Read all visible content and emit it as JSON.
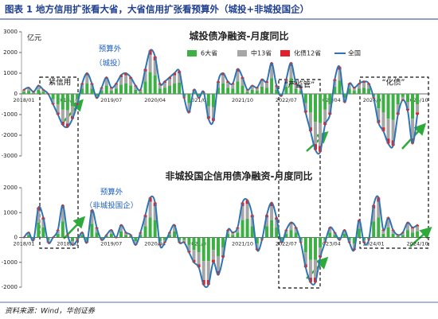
{
  "header": {
    "title": "图表 1   地方信用扩张看大省，大省信用扩张看预算外（城投+非城投国企）"
  },
  "source": "资料来源：Wind，华创证券",
  "chart_data": [
    {
      "type": "bar",
      "title": "城投债净融资-月度同比",
      "y_label": "亿元",
      "legend": "top",
      "stacked": true,
      "categories": [
        "2018/01",
        null,
        null,
        null,
        null,
        null,
        null,
        null,
        null,
        "2018/10",
        null,
        null,
        null,
        null,
        null,
        null,
        null,
        null,
        "2019/07",
        null,
        null,
        null,
        null,
        null,
        null,
        null,
        null,
        "2020/04",
        null,
        null,
        null,
        null,
        null,
        null,
        null,
        null,
        "2021/01",
        null,
        null,
        null,
        null,
        null,
        null,
        null,
        null,
        "2021/10",
        null,
        null,
        null,
        null,
        null,
        null,
        null,
        null,
        "2022/07",
        null,
        null,
        null,
        null,
        null,
        null,
        null,
        null,
        "2023/04",
        null,
        null,
        null,
        null,
        null,
        null,
        null,
        null,
        "2024/01",
        null,
        null,
        null,
        null,
        null,
        null,
        null,
        null,
        "2024/10"
      ],
      "ylim": [
        -3000,
        3000
      ],
      "yticks": [
        -3000,
        -2000,
        -1000,
        0,
        1000,
        2000,
        3000
      ],
      "annotations": [
        "紧信用",
        "预算外",
        "（城投）",
        "“严监管”",
        "“化债”"
      ],
      "series": [
        {
          "name": "6大省",
          "color": "#3cb043",
          "values": [
            100,
            150,
            50,
            200,
            100,
            0,
            -250,
            -500,
            -750,
            -800,
            -600,
            -250,
            250,
            500,
            250,
            -100,
            150,
            400,
            150,
            250,
            450,
            500,
            400,
            200,
            100,
            600,
            1050,
            900,
            250,
            300,
            400,
            500,
            550,
            -100,
            -450,
            100,
            -100,
            50,
            -600,
            -650,
            300,
            500,
            300,
            250,
            600,
            400,
            100,
            200,
            150,
            350,
            300,
            750,
            200,
            -50,
            350,
            750,
            250,
            150,
            -450,
            -900,
            -1350,
            -1400,
            -750,
            -500,
            350,
            650,
            -200,
            250,
            150,
            250,
            300,
            250,
            -100,
            -700,
            -900,
            -1200,
            -1250,
            -500,
            -150,
            -400,
            -1200,
            -500
          ]
        },
        {
          "name": "中13省",
          "color": "#a6a6a6",
          "values": [
            80,
            120,
            40,
            160,
            80,
            0,
            -200,
            -400,
            -600,
            -640,
            -480,
            -200,
            200,
            400,
            200,
            -80,
            120,
            320,
            120,
            200,
            360,
            400,
            320,
            160,
            80,
            480,
            840,
            720,
            200,
            240,
            320,
            400,
            440,
            -80,
            -360,
            80,
            -80,
            40,
            -480,
            -520,
            240,
            400,
            240,
            200,
            480,
            320,
            80,
            160,
            120,
            280,
            240,
            600,
            160,
            -40,
            280,
            600,
            200,
            120,
            -360,
            -720,
            -1080,
            -1120,
            -600,
            -400,
            280,
            520,
            -160,
            200,
            120,
            200,
            240,
            200,
            -80,
            -560,
            -720,
            -960,
            -1000,
            -400,
            -120,
            -320,
            -960,
            -400
          ]
        },
        {
          "name": "化债12省",
          "color": "#e0202a",
          "values": [
            20,
            30,
            10,
            40,
            20,
            0,
            -50,
            -100,
            -150,
            -160,
            -120,
            -50,
            50,
            100,
            50,
            -20,
            30,
            80,
            30,
            50,
            90,
            100,
            80,
            40,
            20,
            120,
            210,
            180,
            50,
            60,
            80,
            100,
            110,
            -20,
            -90,
            20,
            -20,
            10,
            -120,
            -130,
            60,
            100,
            60,
            50,
            120,
            80,
            20,
            40,
            30,
            70,
            60,
            150,
            40,
            -10,
            70,
            150,
            50,
            30,
            -90,
            -180,
            -270,
            -280,
            -150,
            -100,
            70,
            130,
            -40,
            50,
            30,
            50,
            60,
            50,
            -20,
            -140,
            -180,
            -240,
            -250,
            -100,
            -30,
            -80,
            -240,
            -100
          ]
        },
        {
          "name": "全国",
          "type": "line",
          "color": "#2e75b6",
          "values": [
            200,
            300,
            100,
            400,
            200,
            0,
            -500,
            -1000,
            -1500,
            -1600,
            -1200,
            -500,
            500,
            1000,
            500,
            -200,
            300,
            800,
            300,
            500,
            900,
            1000,
            800,
            400,
            200,
            1200,
            2100,
            1800,
            500,
            600,
            800,
            1000,
            1100,
            -200,
            -900,
            200,
            -200,
            100,
            -1200,
            -1300,
            600,
            1000,
            600,
            500,
            1200,
            800,
            200,
            400,
            300,
            700,
            600,
            1500,
            400,
            -100,
            700,
            1500,
            500,
            300,
            -900,
            -1800,
            -2700,
            -2800,
            -1500,
            -1000,
            700,
            1300,
            -400,
            500,
            300,
            500,
            600,
            500,
            -200,
            -1400,
            -1800,
            -2400,
            -2500,
            -1000,
            -300,
            -800,
            -2400,
            -1000
          ]
        }
      ]
    },
    {
      "type": "bar",
      "title": "非城投国企信用债净融资-月度同比",
      "stacked": true,
      "categories": [
        "2018/01",
        null,
        null,
        null,
        null,
        null,
        null,
        null,
        null,
        "2018/10",
        null,
        null,
        null,
        null,
        null,
        null,
        null,
        null,
        "2019/07",
        null,
        null,
        null,
        null,
        null,
        null,
        null,
        null,
        "2020/04",
        null,
        null,
        null,
        null,
        null,
        null,
        null,
        null,
        "2021/01",
        null,
        null,
        null,
        null,
        null,
        null,
        null,
        null,
        "2021/10",
        null,
        null,
        null,
        null,
        null,
        null,
        null,
        null,
        "2022/07",
        null,
        null,
        null,
        null,
        null,
        null,
        null,
        null,
        "2023/04",
        null,
        null,
        null,
        null,
        null,
        null,
        null,
        null,
        "2024/01",
        null,
        null,
        null,
        null,
        null,
        null,
        null,
        null,
        "2024/10"
      ],
      "ylim": [
        -2000,
        2000
      ],
      "yticks": [
        -2000,
        -1000,
        0,
        1000,
        2000
      ],
      "annotations": [
        "预算外",
        "（非城投国企）"
      ],
      "series": [
        {
          "color": "#3cb043",
          "values": [
            0,
            100,
            -50,
            600,
            400,
            -100,
            0,
            150,
            650,
            50,
            -150,
            -50,
            100,
            -100,
            550,
            200,
            -50,
            50,
            150,
            0,
            250,
            100,
            50,
            -150,
            100,
            450,
            800,
            700,
            -150,
            -100,
            100,
            250,
            -100,
            -100,
            -300,
            -500,
            -600,
            -950,
            -950,
            -500,
            -750,
            -400,
            150,
            100,
            200,
            700,
            750,
            450,
            -250,
            -50,
            450,
            700,
            400,
            -100,
            150,
            300,
            200,
            -100,
            -600,
            -900,
            -900,
            -400,
            -100,
            200,
            100,
            -50,
            150,
            -100,
            -250,
            350,
            -100,
            -50,
            650,
            800,
            150,
            400,
            150,
            50,
            100,
            300,
            200,
            250
          ]
        },
        {
          "color": "#a6a6a6",
          "values": [
            0,
            80,
            -40,
            480,
            320,
            -80,
            0,
            120,
            520,
            40,
            -120,
            -40,
            80,
            -80,
            440,
            160,
            -40,
            40,
            120,
            0,
            200,
            80,
            40,
            -120,
            80,
            360,
            640,
            560,
            -120,
            -80,
            80,
            200,
            -80,
            -80,
            -240,
            -400,
            -480,
            -760,
            -760,
            -400,
            -600,
            -320,
            120,
            80,
            160,
            560,
            600,
            360,
            -200,
            -40,
            360,
            560,
            320,
            -80,
            120,
            240,
            160,
            -80,
            -480,
            -720,
            -720,
            -320,
            -80,
            160,
            80,
            -40,
            120,
            -80,
            -200,
            280,
            -80,
            -40,
            520,
            640,
            120,
            320,
            120,
            40,
            80,
            240,
            160,
            200
          ]
        },
        {
          "color": "#e0202a",
          "values": [
            0,
            20,
            -10,
            120,
            80,
            -20,
            0,
            30,
            130,
            10,
            -30,
            -10,
            20,
            -20,
            110,
            40,
            -10,
            10,
            30,
            0,
            50,
            20,
            10,
            -30,
            20,
            90,
            160,
            140,
            -30,
            -20,
            20,
            50,
            -20,
            -20,
            -60,
            -100,
            -120,
            -190,
            -190,
            -100,
            -150,
            -80,
            30,
            20,
            40,
            140,
            150,
            90,
            -50,
            -10,
            90,
            140,
            80,
            -20,
            30,
            60,
            40,
            -20,
            -120,
            -180,
            -180,
            -80,
            -20,
            40,
            20,
            -10,
            30,
            -20,
            -50,
            70,
            -20,
            -10,
            130,
            160,
            30,
            80,
            30,
            10,
            20,
            60,
            40,
            50
          ]
        },
        {
          "type": "line",
          "color": "#2e75b6",
          "values": [
            0,
            200,
            -100,
            1200,
            800,
            -200,
            0,
            300,
            1300,
            100,
            -300,
            -100,
            200,
            -200,
            1100,
            400,
            -100,
            100,
            300,
            0,
            500,
            200,
            100,
            -300,
            200,
            900,
            1600,
            1400,
            -300,
            -200,
            200,
            500,
            -200,
            -200,
            -600,
            -1000,
            -1200,
            -1900,
            -1900,
            -1000,
            -1500,
            -800,
            300,
            200,
            400,
            1400,
            1500,
            900,
            -500,
            -100,
            900,
            1400,
            800,
            -200,
            300,
            600,
            400,
            -200,
            -1200,
            -1800,
            -1800,
            -800,
            -200,
            400,
            200,
            -100,
            300,
            -200,
            -500,
            700,
            -200,
            -100,
            1300,
            1600,
            300,
            800,
            300,
            100,
            200,
            600,
            400,
            500
          ]
        }
      ]
    }
  ]
}
